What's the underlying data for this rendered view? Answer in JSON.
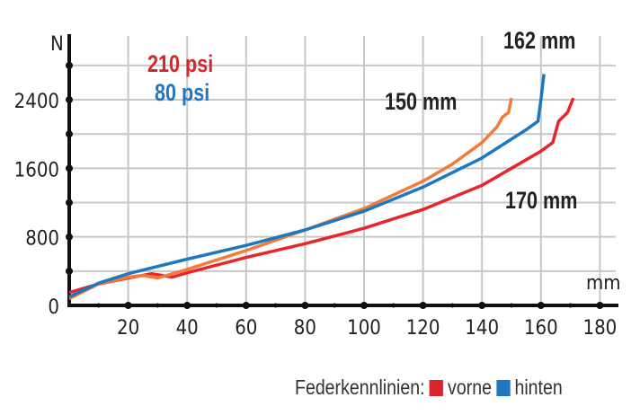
{
  "chart_data": {
    "type": "line",
    "xlabel": "mm",
    "ylabel": "N",
    "xlim": [
      0,
      185
    ],
    "ylim": [
      0,
      3100
    ],
    "xticks": [
      20,
      40,
      60,
      80,
      100,
      120,
      140,
      160,
      180
    ],
    "yticks": [
      0,
      800,
      1600,
      2400
    ],
    "grid": true,
    "annotations": {
      "psi_front": "210 psi",
      "psi_rear": "80 psi",
      "travel_a": "162 mm",
      "travel_b": "150 mm",
      "travel_c": "170 mm"
    },
    "series": [
      {
        "color": "#e8262a",
        "x": [
          0,
          10,
          20,
          28,
          35,
          40,
          60,
          80,
          100,
          120,
          140,
          160,
          164,
          166,
          169,
          171
        ],
        "y": [
          150,
          250,
          320,
          370,
          330,
          380,
          560,
          720,
          900,
          1120,
          1400,
          1800,
          1900,
          2150,
          2250,
          2420
        ]
      },
      {
        "color": "#f47a3a",
        "x": [
          0,
          10,
          20,
          25,
          30,
          40,
          60,
          80,
          100,
          120,
          130,
          140,
          145,
          147,
          149,
          150
        ],
        "y": [
          80,
          250,
          330,
          350,
          320,
          420,
          640,
          880,
          1130,
          1450,
          1650,
          1900,
          2080,
          2200,
          2250,
          2420
        ]
      },
      {
        "color": "#1f77c0",
        "x": [
          0,
          10,
          20,
          40,
          60,
          80,
          100,
          120,
          140,
          155,
          159,
          160,
          161
        ],
        "y": [
          100,
          260,
          370,
          540,
          700,
          880,
          1100,
          1380,
          1720,
          2050,
          2150,
          2400,
          2700
        ]
      }
    ],
    "legend": {
      "title": "Federkennlinien:",
      "placement": "bottom-right",
      "items": [
        {
          "label": "vorne",
          "color": "#d7262b"
        },
        {
          "label": "hinten",
          "color": "#1f77c0"
        }
      ]
    }
  }
}
